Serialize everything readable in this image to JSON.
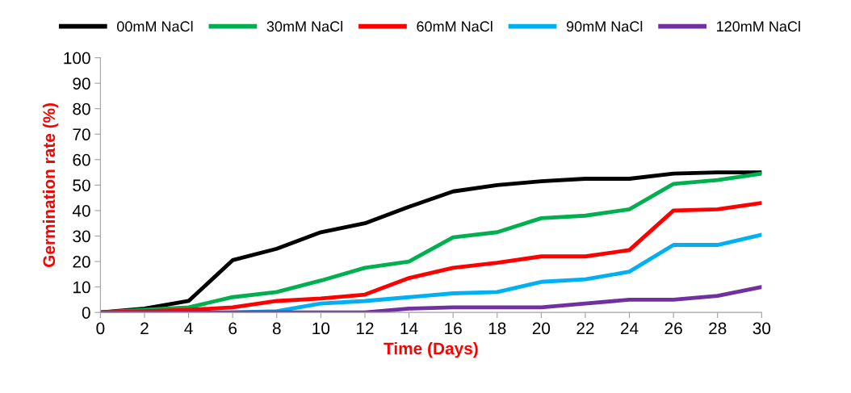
{
  "chart_data": {
    "type": "line",
    "xlabel": "Time (Days)",
    "ylabel": "Germination rate (%)",
    "x": [
      0,
      2,
      4,
      6,
      8,
      10,
      12,
      14,
      16,
      18,
      20,
      22,
      24,
      26,
      28,
      30
    ],
    "series": [
      {
        "name": "00mM NaCl",
        "color": "#000000",
        "values": [
          0,
          1.5,
          4.5,
          20.5,
          25,
          31.5,
          35,
          41.5,
          47.5,
          50,
          51.5,
          52.5,
          52.5,
          54.5,
          55,
          55
        ]
      },
      {
        "name": "30mM NaCl",
        "color": "#00b050",
        "values": [
          0,
          1,
          2,
          6,
          8,
          12.5,
          17.5,
          20,
          29.5,
          31.5,
          37,
          38,
          40.5,
          50.5,
          52,
          54.5
        ]
      },
      {
        "name": "60mM NaCl",
        "color": "#ff0000",
        "values": [
          0,
          0.5,
          1,
          2,
          4.5,
          5.5,
          7,
          13.5,
          17.5,
          19.5,
          22,
          22,
          24.5,
          40,
          40.5,
          43
        ]
      },
      {
        "name": "90mM NaCl",
        "color": "#00b0f0",
        "values": [
          null,
          null,
          null,
          0,
          0.5,
          3.5,
          4.5,
          6,
          7.5,
          8,
          12,
          13,
          16,
          26.5,
          26.5,
          30.5
        ]
      },
      {
        "name": "120mM NaCl",
        "color": "#7030a0",
        "values": [
          0,
          0,
          0,
          0,
          0,
          0,
          0,
          1.5,
          2,
          2,
          2,
          3.5,
          5,
          5,
          6.5,
          10
        ]
      }
    ],
    "xlim": [
      0,
      30
    ],
    "xticks": [
      0,
      2,
      4,
      6,
      8,
      10,
      12,
      14,
      16,
      18,
      20,
      22,
      24,
      26,
      28,
      30
    ],
    "ylim": [
      0,
      100
    ],
    "yticks": [
      0,
      10,
      20,
      30,
      40,
      50,
      60,
      70,
      80,
      90,
      100
    ],
    "legend": "top",
    "grid": false,
    "marker": "none",
    "line_style": "solid"
  }
}
